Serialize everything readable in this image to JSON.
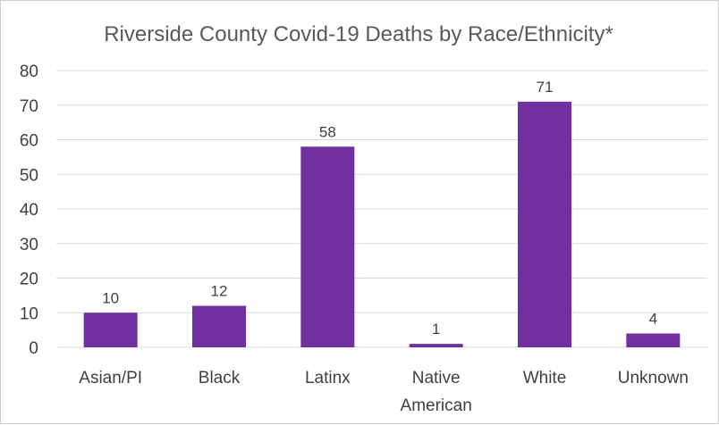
{
  "chart_data": {
    "type": "bar",
    "title": "Riverside County Covid-19 Deaths by Race/Ethnicity*",
    "categories": [
      [
        "Asian/PI"
      ],
      [
        "Black"
      ],
      [
        "Latinx"
      ],
      [
        "Native",
        "American"
      ],
      [
        "White"
      ],
      [
        "Unknown"
      ]
    ],
    "values": [
      10,
      12,
      58,
      1,
      71,
      4
    ],
    "ylim": [
      0,
      80
    ],
    "yticks": [
      0,
      10,
      20,
      30,
      40,
      50,
      60,
      70,
      80
    ],
    "grid": true,
    "bar_color": "#7030a0",
    "grid_color": "#d9d9d9"
  }
}
